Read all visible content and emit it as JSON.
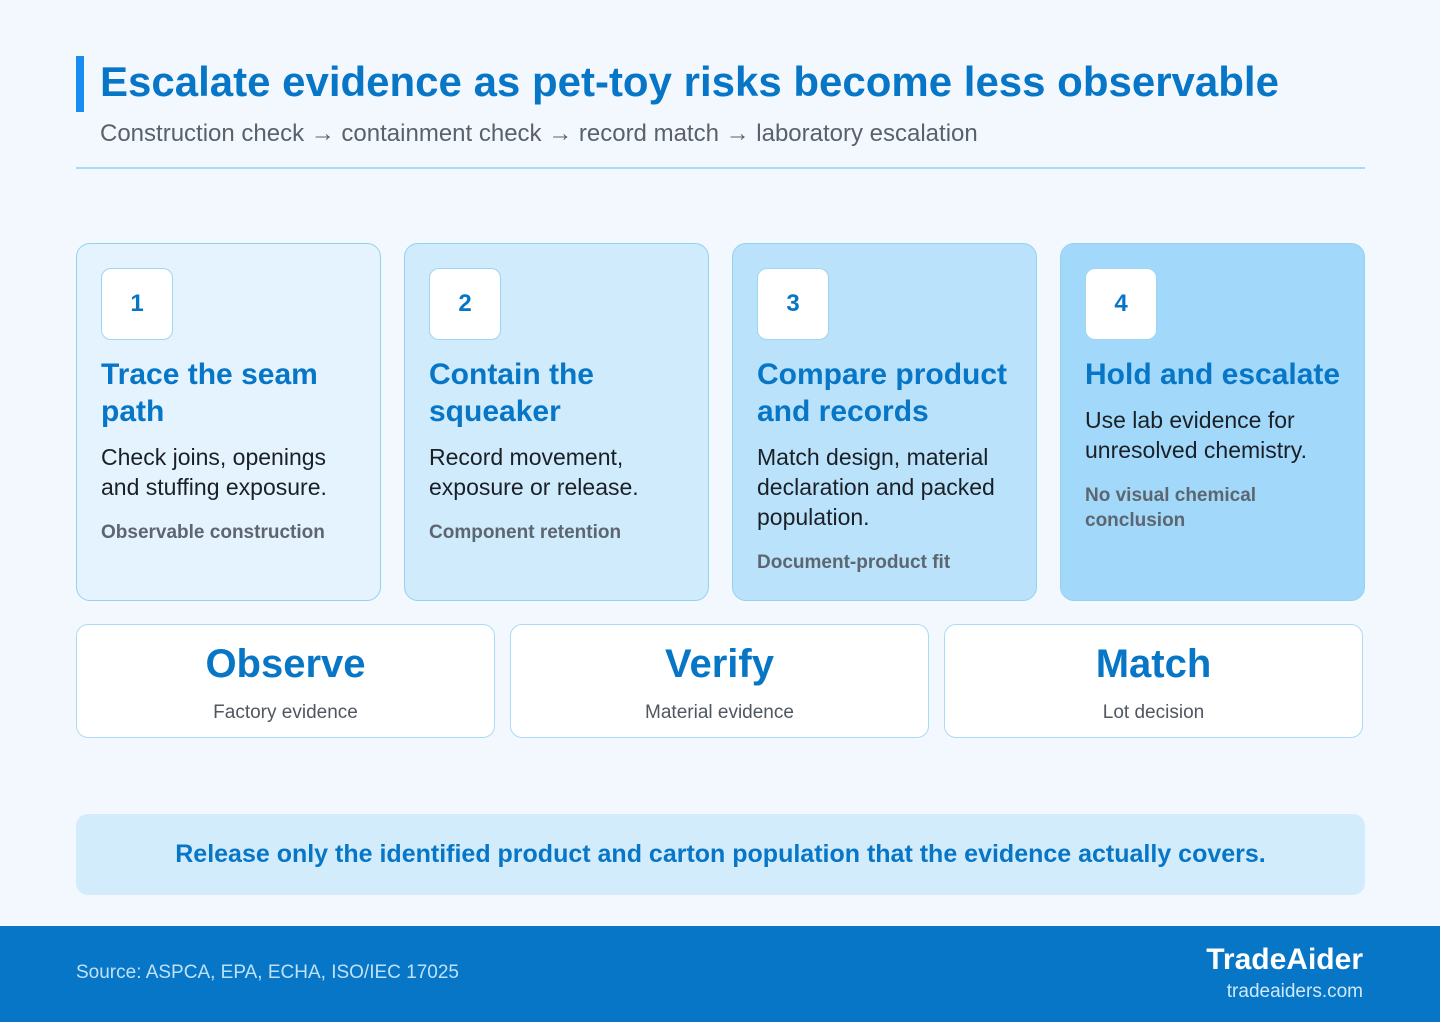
{
  "header": {
    "title": "Escalate evidence as pet-toy risks become less observable",
    "subtitle": "Construction check → containment check → record match → laboratory escalation"
  },
  "steps": [
    {
      "number": "1",
      "title": "Trace the seam path",
      "description": "Check joins, openings and stuffing exposure.",
      "tag": "Observable construction"
    },
    {
      "number": "2",
      "title": "Contain the squeaker",
      "description": "Record movement, exposure or release.",
      "tag": "Component retention"
    },
    {
      "number": "3",
      "title": "Compare product and records",
      "description": "Match design, material declaration and packed population.",
      "tag": "Document-product fit"
    },
    {
      "number": "4",
      "title": "Hold and escalate",
      "description": "Use lab evidence for unresolved chemistry.",
      "tag": "No visual chemical conclusion"
    }
  ],
  "summary": [
    {
      "title": "Observe",
      "subtitle": "Factory evidence"
    },
    {
      "title": "Verify",
      "subtitle": "Material evidence"
    },
    {
      "title": "Match",
      "subtitle": "Lot decision"
    }
  ],
  "banner": {
    "text": "Release only the identified product and carton population that the evidence actually covers."
  },
  "footer": {
    "source": "Source: ASPCA, EPA, ECHA, ISO/IEC 17025",
    "brand": "TradeAider",
    "url": "tradeaiders.com"
  },
  "colors": {
    "accent": "#0776c6",
    "title_bar": "#1a8cf0",
    "background": "#f3f8fe",
    "footer_bg": "#0776c6"
  }
}
